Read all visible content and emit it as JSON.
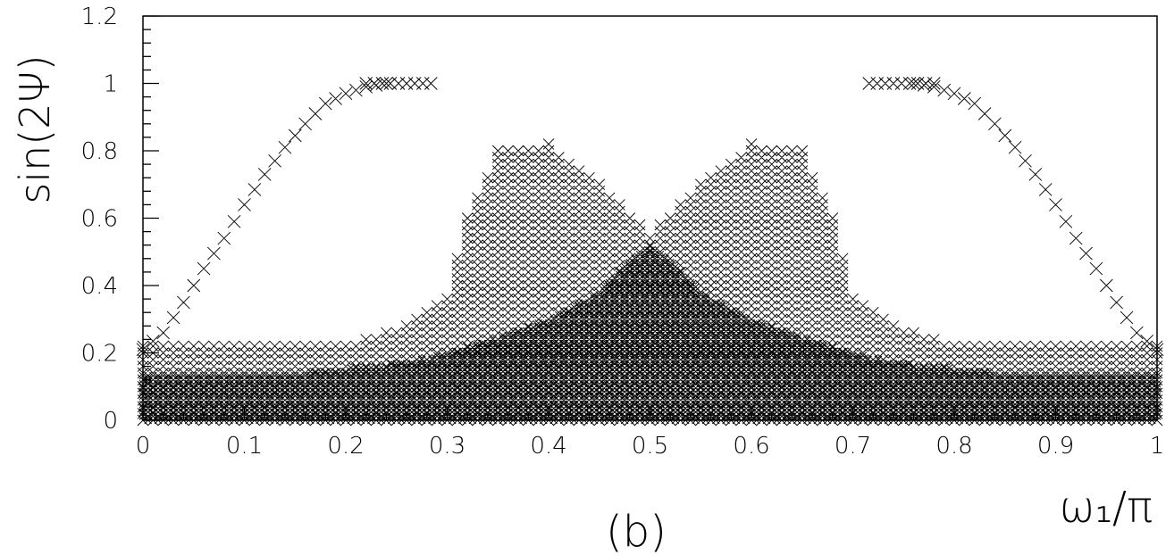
{
  "chart_data": {
    "type": "scatter",
    "panel_label": "(b)",
    "xlabel": "ω₁/π",
    "ylabel": "sin(2Ψ)",
    "xlim": [
      0,
      1
    ],
    "ylim": [
      0,
      1.2
    ],
    "x_ticks": [
      "0",
      "0.1",
      "0.2",
      "0.3",
      "0.4",
      "0.5",
      "0.6",
      "0.7",
      "0.8",
      "0.9",
      "1"
    ],
    "y_ticks": [
      "0",
      "0.2",
      "0.4",
      "0.6",
      "0.8",
      "1",
      "1.2"
    ],
    "grid": false,
    "marker": "x",
    "marker_color": "#000000",
    "outer_curve": {
      "x": [
        0.0,
        0.02,
        0.04,
        0.06,
        0.08,
        0.1,
        0.12,
        0.14,
        0.16,
        0.18,
        0.2,
        0.22,
        0.24
      ],
      "y": [
        0.21,
        0.26,
        0.35,
        0.45,
        0.54,
        0.64,
        0.73,
        0.81,
        0.88,
        0.94,
        0.97,
        0.99,
        1.0
      ]
    },
    "band_upper_edge": {
      "x": [
        0.0,
        0.1,
        0.2,
        0.25,
        0.28,
        0.3,
        0.32,
        0.35,
        0.4,
        0.45,
        0.5
      ],
      "y": [
        0.22,
        0.22,
        0.22,
        0.27,
        0.32,
        0.36,
        0.6,
        0.8,
        0.82,
        0.7,
        0.55
      ]
    },
    "dense_core": {
      "x": [
        0.0,
        0.15,
        0.25,
        0.3,
        0.35,
        0.4,
        0.45,
        0.48,
        0.5
      ],
      "y": [
        0.14,
        0.14,
        0.17,
        0.2,
        0.25,
        0.3,
        0.38,
        0.48,
        0.52
      ]
    },
    "symmetry": "mirror about x = 0.5"
  }
}
